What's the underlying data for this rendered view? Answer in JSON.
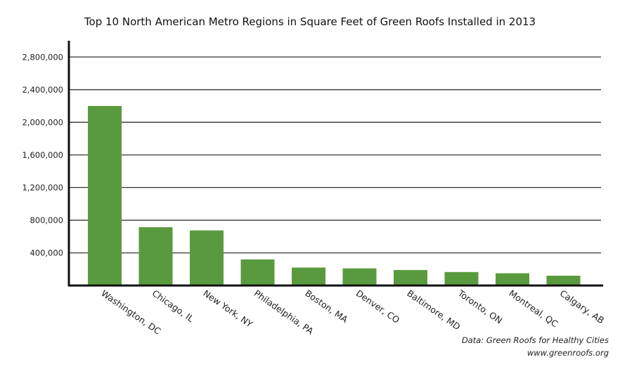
{
  "chart_data": {
    "type": "bar",
    "title": "Top 10 North American Metro Regions in Square Feet of Green Roofs Installed in 2013",
    "xlabel": "",
    "ylabel": "",
    "categories": [
      "Washington, DC",
      "Chicago, IL",
      "New York, NY",
      "Philadelphia, PA",
      "Boston, MA",
      "Denver, CO",
      "Baltimore, MD",
      "Toronto, ON",
      "Montreal, QC",
      "Calgary, AB"
    ],
    "values": [
      2200000,
      715000,
      675000,
      320000,
      220000,
      210000,
      190000,
      165000,
      150000,
      120000
    ],
    "ylim": [
      0,
      3000000
    ],
    "yticks": [
      400000,
      800000,
      1200000,
      1600000,
      2000000,
      2400000,
      2800000
    ],
    "ytick_labels": [
      "400,000",
      "800,000",
      "1,200,000",
      "1,600,000",
      "2,000,000",
      "2,400,000",
      "2,800,000"
    ],
    "grid": true,
    "bar_color": "#5a9a3e",
    "source_line1": "Data: Green Roofs for Healthy Cities",
    "source_line2": "www.greenroofs.org"
  }
}
